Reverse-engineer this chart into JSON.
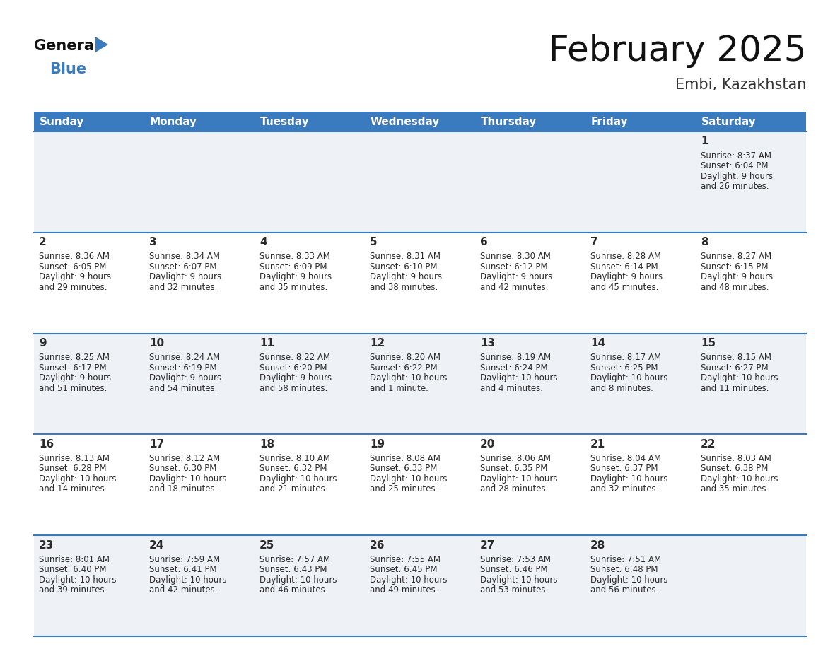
{
  "title": "February 2025",
  "subtitle": "Embi, Kazakhstan",
  "header_bg": "#3a7bbf",
  "header_text": "#ffffff",
  "day_names": [
    "Sunday",
    "Monday",
    "Tuesday",
    "Wednesday",
    "Thursday",
    "Friday",
    "Saturday"
  ],
  "cell_bg_odd": "#eef2f7",
  "cell_bg_even": "#ffffff",
  "border_color": "#3a7bbf",
  "day_num_color": "#2a2a2a",
  "info_color": "#2a2a2a",
  "title_fontsize": 36,
  "subtitle_fontsize": 15,
  "header_fontsize": 11,
  "day_num_fontsize": 11,
  "info_fontsize": 8.5,
  "days": [
    {
      "day": 1,
      "col": 6,
      "row": 0,
      "sunrise": "8:37 AM",
      "sunset": "6:04 PM",
      "daylight": "9 hours and 26 minutes."
    },
    {
      "day": 2,
      "col": 0,
      "row": 1,
      "sunrise": "8:36 AM",
      "sunset": "6:05 PM",
      "daylight": "9 hours and 29 minutes."
    },
    {
      "day": 3,
      "col": 1,
      "row": 1,
      "sunrise": "8:34 AM",
      "sunset": "6:07 PM",
      "daylight": "9 hours and 32 minutes."
    },
    {
      "day": 4,
      "col": 2,
      "row": 1,
      "sunrise": "8:33 AM",
      "sunset": "6:09 PM",
      "daylight": "9 hours and 35 minutes."
    },
    {
      "day": 5,
      "col": 3,
      "row": 1,
      "sunrise": "8:31 AM",
      "sunset": "6:10 PM",
      "daylight": "9 hours and 38 minutes."
    },
    {
      "day": 6,
      "col": 4,
      "row": 1,
      "sunrise": "8:30 AM",
      "sunset": "6:12 PM",
      "daylight": "9 hours and 42 minutes."
    },
    {
      "day": 7,
      "col": 5,
      "row": 1,
      "sunrise": "8:28 AM",
      "sunset": "6:14 PM",
      "daylight": "9 hours and 45 minutes."
    },
    {
      "day": 8,
      "col": 6,
      "row": 1,
      "sunrise": "8:27 AM",
      "sunset": "6:15 PM",
      "daylight": "9 hours and 48 minutes."
    },
    {
      "day": 9,
      "col": 0,
      "row": 2,
      "sunrise": "8:25 AM",
      "sunset": "6:17 PM",
      "daylight": "9 hours and 51 minutes."
    },
    {
      "day": 10,
      "col": 1,
      "row": 2,
      "sunrise": "8:24 AM",
      "sunset": "6:19 PM",
      "daylight": "9 hours and 54 minutes."
    },
    {
      "day": 11,
      "col": 2,
      "row": 2,
      "sunrise": "8:22 AM",
      "sunset": "6:20 PM",
      "daylight": "9 hours and 58 minutes."
    },
    {
      "day": 12,
      "col": 3,
      "row": 2,
      "sunrise": "8:20 AM",
      "sunset": "6:22 PM",
      "daylight": "10 hours and 1 minute."
    },
    {
      "day": 13,
      "col": 4,
      "row": 2,
      "sunrise": "8:19 AM",
      "sunset": "6:24 PM",
      "daylight": "10 hours and 4 minutes."
    },
    {
      "day": 14,
      "col": 5,
      "row": 2,
      "sunrise": "8:17 AM",
      "sunset": "6:25 PM",
      "daylight": "10 hours and 8 minutes."
    },
    {
      "day": 15,
      "col": 6,
      "row": 2,
      "sunrise": "8:15 AM",
      "sunset": "6:27 PM",
      "daylight": "10 hours and 11 minutes."
    },
    {
      "day": 16,
      "col": 0,
      "row": 3,
      "sunrise": "8:13 AM",
      "sunset": "6:28 PM",
      "daylight": "10 hours and 14 minutes."
    },
    {
      "day": 17,
      "col": 1,
      "row": 3,
      "sunrise": "8:12 AM",
      "sunset": "6:30 PM",
      "daylight": "10 hours and 18 minutes."
    },
    {
      "day": 18,
      "col": 2,
      "row": 3,
      "sunrise": "8:10 AM",
      "sunset": "6:32 PM",
      "daylight": "10 hours and 21 minutes."
    },
    {
      "day": 19,
      "col": 3,
      "row": 3,
      "sunrise": "8:08 AM",
      "sunset": "6:33 PM",
      "daylight": "10 hours and 25 minutes."
    },
    {
      "day": 20,
      "col": 4,
      "row": 3,
      "sunrise": "8:06 AM",
      "sunset": "6:35 PM",
      "daylight": "10 hours and 28 minutes."
    },
    {
      "day": 21,
      "col": 5,
      "row": 3,
      "sunrise": "8:04 AM",
      "sunset": "6:37 PM",
      "daylight": "10 hours and 32 minutes."
    },
    {
      "day": 22,
      "col": 6,
      "row": 3,
      "sunrise": "8:03 AM",
      "sunset": "6:38 PM",
      "daylight": "10 hours and 35 minutes."
    },
    {
      "day": 23,
      "col": 0,
      "row": 4,
      "sunrise": "8:01 AM",
      "sunset": "6:40 PM",
      "daylight": "10 hours and 39 minutes."
    },
    {
      "day": 24,
      "col": 1,
      "row": 4,
      "sunrise": "7:59 AM",
      "sunset": "6:41 PM",
      "daylight": "10 hours and 42 minutes."
    },
    {
      "day": 25,
      "col": 2,
      "row": 4,
      "sunrise": "7:57 AM",
      "sunset": "6:43 PM",
      "daylight": "10 hours and 46 minutes."
    },
    {
      "day": 26,
      "col": 3,
      "row": 4,
      "sunrise": "7:55 AM",
      "sunset": "6:45 PM",
      "daylight": "10 hours and 49 minutes."
    },
    {
      "day": 27,
      "col": 4,
      "row": 4,
      "sunrise": "7:53 AM",
      "sunset": "6:46 PM",
      "daylight": "10 hours and 53 minutes."
    },
    {
      "day": 28,
      "col": 5,
      "row": 4,
      "sunrise": "7:51 AM",
      "sunset": "6:48 PM",
      "daylight": "10 hours and 56 minutes."
    }
  ]
}
